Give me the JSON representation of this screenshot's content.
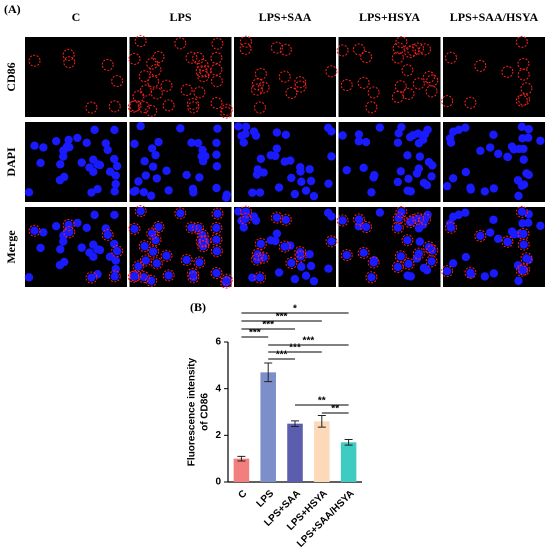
{
  "panel_a": {
    "label": "(A)",
    "columns": [
      "C",
      "LPS",
      "LPS+SAA",
      "LPS+HSYA",
      "LPS+SAA/HSYA"
    ],
    "rows": [
      "CD86",
      "DAPI",
      "Merge"
    ]
  },
  "panel_b": {
    "label": "(B)"
  },
  "chart_data": {
    "type": "bar",
    "y_label": [
      "Fluorescence intensity",
      "of CD86"
    ],
    "categories": [
      "C",
      "LPS",
      "LPS+SAA",
      "LPS+HSYA",
      "LPS+SAA/HSYA"
    ],
    "values": [
      1.0,
      4.7,
      2.5,
      2.6,
      1.7
    ],
    "errors": [
      0.1,
      0.4,
      0.12,
      0.25,
      0.12
    ],
    "colors": [
      "#f27e7e",
      "#7d8fca",
      "#5b5eae",
      "#fcd9b8",
      "#3ecbc2"
    ],
    "ylim": [
      0,
      6
    ],
    "yticks": [
      0,
      2,
      4,
      6
    ],
    "comparisons": [
      {
        "text": "*",
        "groups": [
          0,
          4
        ]
      },
      {
        "text": "***",
        "groups": [
          0,
          3
        ]
      },
      {
        "text": "***",
        "groups": [
          0,
          2
        ]
      },
      {
        "text": "***",
        "groups": [
          0,
          1
        ]
      },
      {
        "text": "***",
        "groups": [
          1,
          4
        ]
      },
      {
        "text": "***",
        "groups": [
          1,
          3
        ]
      },
      {
        "text": "***",
        "groups": [
          1,
          2
        ]
      },
      {
        "text": "**",
        "groups": [
          2,
          4
        ]
      },
      {
        "text": "**",
        "groups": [
          3,
          4
        ]
      }
    ]
  }
}
